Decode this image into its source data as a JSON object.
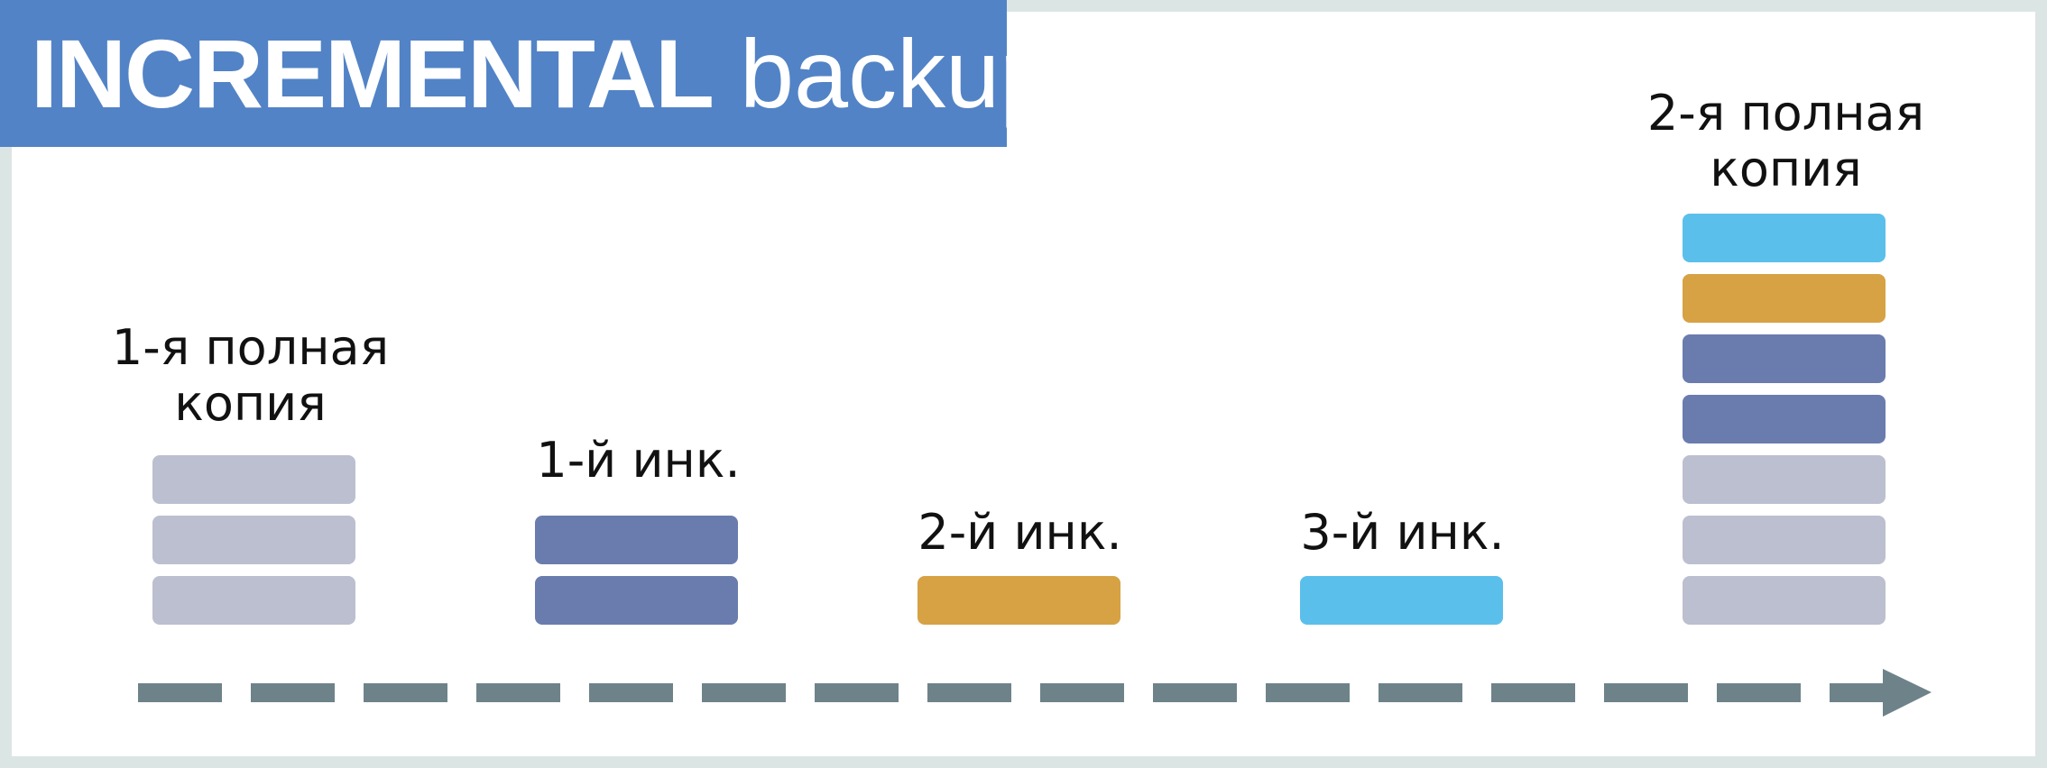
{
  "title": {
    "bold": "INCREMENTAL",
    "light": "backup"
  },
  "colors": {
    "banner": "#5283c6",
    "frame": "#dbe5e4",
    "full_data": "#bcbfcf",
    "inc1": "#6a7cae",
    "inc2": "#d6a244",
    "inc3": "#5bbfec",
    "timeline": "#6e8389"
  },
  "steps": [
    {
      "label_line1": "1-я полная",
      "label_line2": "копия",
      "blocks": [
        "full_data",
        "full_data",
        "full_data"
      ]
    },
    {
      "label_line1": "1-й инк.",
      "label_line2": "",
      "blocks": [
        "inc1",
        "inc1"
      ]
    },
    {
      "label_line1": "2-й инк.",
      "label_line2": "",
      "blocks": [
        "inc2"
      ]
    },
    {
      "label_line1": "3-й инк.",
      "label_line2": "",
      "blocks": [
        "inc3"
      ]
    },
    {
      "label_line1": "2-я полная",
      "label_line2": "копия",
      "blocks": [
        "inc3",
        "inc2",
        "inc1",
        "inc1",
        "full_data",
        "full_data",
        "full_data"
      ]
    }
  ]
}
